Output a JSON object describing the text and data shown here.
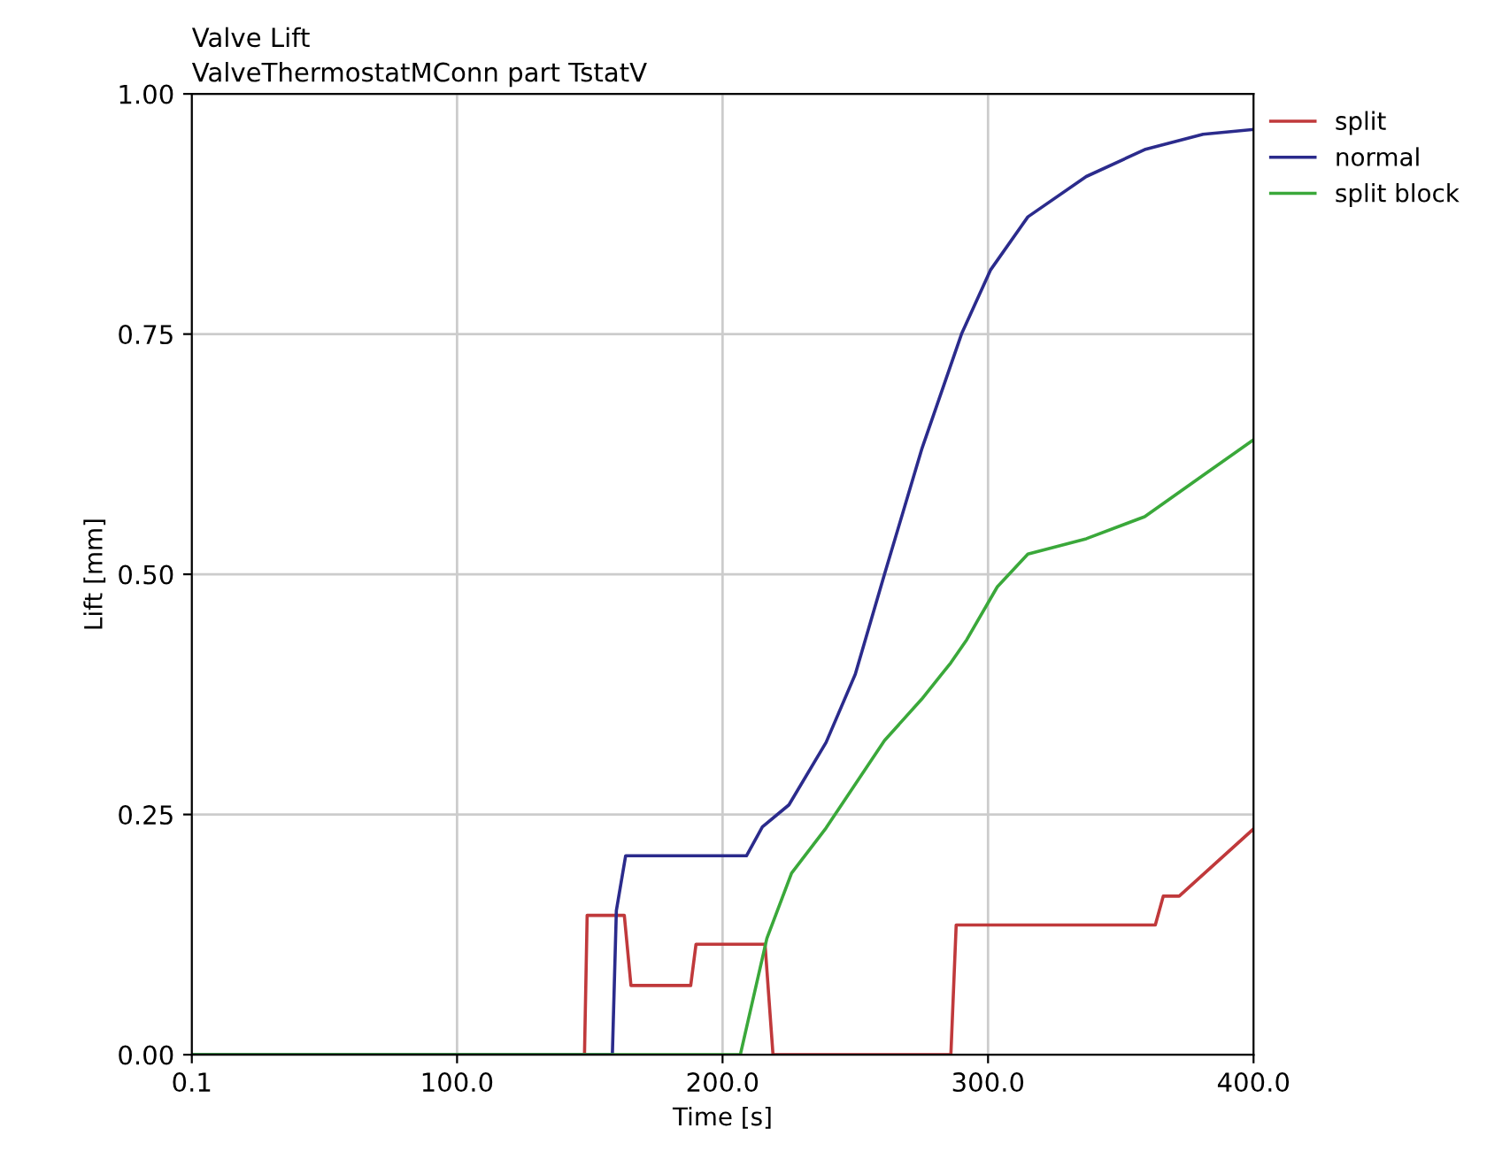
{
  "chart_data": {
    "type": "line",
    "title": "Valve Lift",
    "subtitle": "ValveThermostatMConn part TstatV",
    "xlabel": "Time [s]",
    "ylabel": "Lift [mm]",
    "xlim": [
      0.1,
      400
    ],
    "ylim": [
      0,
      1
    ],
    "xticks": [
      0.1,
      {
        "value": 100,
        "label": "100.0"
      },
      {
        "value": 200,
        "label": "200.0"
      },
      {
        "value": 300,
        "label": "300.0"
      },
      {
        "value": 400,
        "label": "400.0"
      }
    ],
    "yticks": [
      {
        "value": 0,
        "label": "0.00"
      },
      {
        "value": 0.25,
        "label": "0.25"
      },
      {
        "value": 0.5,
        "label": "0.50"
      },
      {
        "value": 0.75,
        "label": "0.75"
      },
      {
        "value": 1,
        "label": "1.00"
      }
    ],
    "grid": true,
    "legend": "top right",
    "marker": "none",
    "line_style": "solid",
    "series": [
      {
        "name": "split",
        "color": "#c0393b",
        "x": [
          0.1,
          148,
          149,
          163,
          165.5,
          188,
          190,
          216,
          219,
          286,
          288,
          363,
          366,
          372,
          400
        ],
        "values": [
          0,
          0,
          0.145,
          0.145,
          0.072,
          0.072,
          0.115,
          0.115,
          0,
          0,
          0.135,
          0.135,
          0.165,
          0.165,
          0.235
        ]
      },
      {
        "name": "normal",
        "color": "#2b2b8c",
        "x": [
          0.1,
          158.5,
          160,
          163.5,
          209,
          215,
          225,
          239,
          250,
          261,
          275,
          290,
          301,
          315,
          337,
          359,
          381,
          400
        ],
        "values": [
          0,
          0,
          0.15,
          0.207,
          0.207,
          0.237,
          0.26,
          0.325,
          0.396,
          0.5,
          0.63,
          0.75,
          0.817,
          0.872,
          0.914,
          0.942,
          0.958,
          0.963
        ]
      },
      {
        "name": "split block",
        "color": "#3aa83a",
        "x": [
          0.1,
          206.7,
          216.7,
          226,
          239,
          261,
          275,
          286,
          292,
          303.5,
          315,
          337,
          359,
          381,
          400
        ],
        "values": [
          0,
          0,
          0.121,
          0.189,
          0.236,
          0.327,
          0.37,
          0.408,
          0.432,
          0.487,
          0.521,
          0.537,
          0.56,
          0.603,
          0.64
        ]
      }
    ]
  }
}
